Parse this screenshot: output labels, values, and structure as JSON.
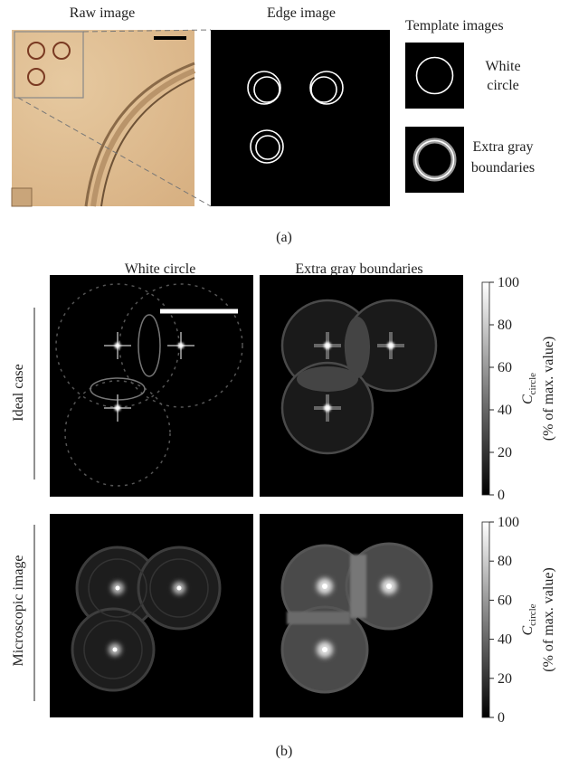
{
  "panel_a": {
    "raw_image_label": "Raw image",
    "edge_image_label": "Edge image",
    "template_label": "Template images",
    "templates": [
      {
        "label_lines": [
          "White",
          "circle"
        ]
      },
      {
        "label_lines": [
          "Extra gray",
          "boundaries"
        ]
      }
    ],
    "caption": "(a)"
  },
  "panel_b": {
    "column_labels": [
      "White circle",
      "Extra gray boundaries"
    ],
    "row_labels": [
      "Ideal case",
      "Microscopic image"
    ],
    "colorbar": {
      "ticks": [
        0,
        20,
        40,
        60,
        80,
        100
      ],
      "label_symbol": "C",
      "label_subscript": "circle",
      "label_unit": "(% of max. value)"
    },
    "caption": "(b)"
  }
}
